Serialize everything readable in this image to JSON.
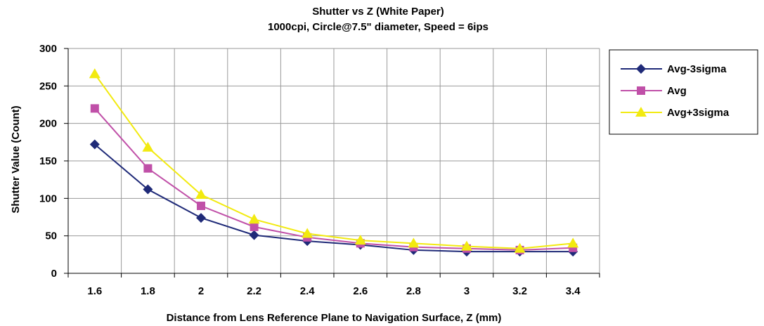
{
  "chart_data": {
    "type": "line",
    "title": "Shutter vs Z (White Paper)",
    "subtitle": "1000cpi, Circle@7.5\" diameter, Speed = 6ips",
    "xlabel": "Distance from Lens Reference Plane to Navigation Surface, Z (mm)",
    "ylabel": "Shutter Value (Count)",
    "x": [
      1.6,
      1.8,
      2,
      2.2,
      2.4,
      2.6,
      2.8,
      3,
      3.2,
      3.4
    ],
    "x_tick_labels": [
      "1.6",
      "1.8",
      "2",
      "2.2",
      "2.4",
      "2.6",
      "2.8",
      "3",
      "3.2",
      "3.4"
    ],
    "y_ticks": [
      0,
      50,
      100,
      150,
      200,
      250,
      300
    ],
    "y_tick_labels": [
      "0",
      "50",
      "100",
      "150",
      "200",
      "250",
      "300"
    ],
    "ylim": [
      0,
      300
    ],
    "grid": true,
    "legend_position": "right",
    "series": [
      {
        "name": "Avg-3sigma",
        "color": "#1f2a78",
        "marker": "diamond",
        "values": [
          172,
          112,
          74,
          51,
          43,
          38,
          31,
          29,
          29,
          29
        ]
      },
      {
        "name": "Avg",
        "color": "#c050a8",
        "marker": "square",
        "values": [
          220,
          140,
          90,
          62,
          48,
          40,
          35,
          33,
          31,
          34
        ]
      },
      {
        "name": "Avg+3sigma",
        "color": "#f2ea10",
        "marker": "triangle",
        "values": [
          266,
          168,
          105,
          72,
          53,
          44,
          40,
          36,
          33,
          40
        ]
      }
    ]
  }
}
